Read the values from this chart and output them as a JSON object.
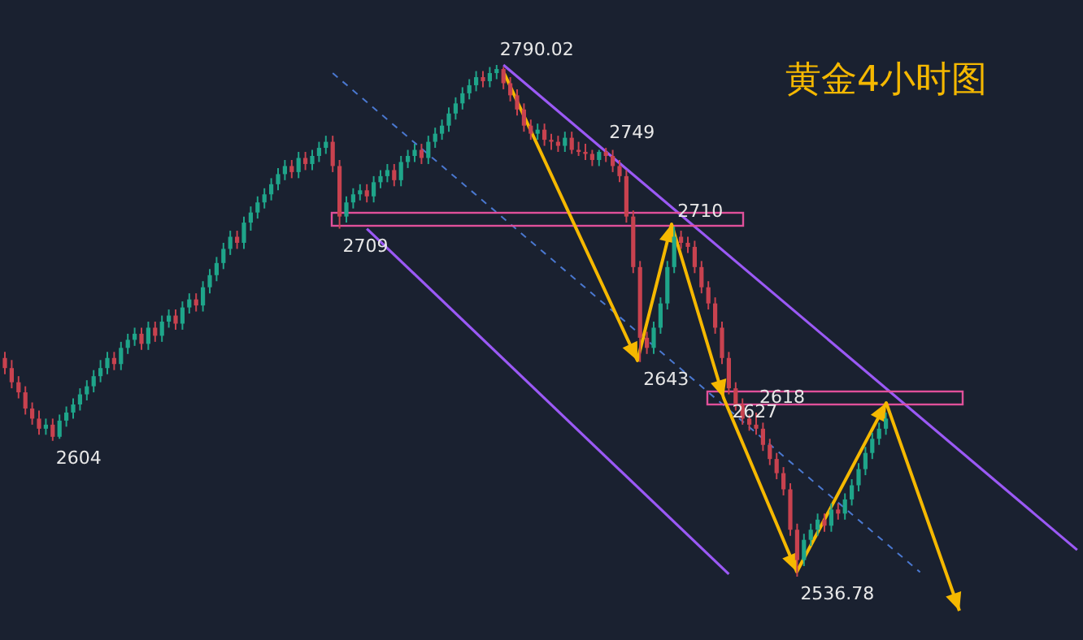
{
  "chart_data": {
    "type": "candlestick",
    "title": "黄金4小时图",
    "categories": [
      null,
      null,
      null,
      null,
      null,
      null,
      null,
      null,
      null,
      null,
      null,
      null,
      null,
      null,
      null,
      null,
      null,
      null,
      null,
      null,
      null,
      null,
      null,
      null,
      null,
      null,
      null,
      null,
      null,
      null,
      null,
      null,
      null,
      null,
      null,
      null,
      null,
      null,
      null,
      null,
      null,
      null,
      null,
      null,
      null,
      null,
      null,
      null,
      null,
      null,
      null,
      null,
      null,
      null,
      null,
      null,
      null,
      null,
      null,
      null,
      null,
      null,
      null,
      null,
      null,
      null,
      null,
      null,
      null,
      null,
      null,
      null,
      null,
      null,
      null,
      null,
      null,
      null,
      null,
      null,
      null,
      null,
      null,
      null,
      null,
      null,
      null,
      null,
      null,
      null,
      null,
      null,
      null,
      null,
      null,
      null,
      null,
      null,
      null,
      null,
      null,
      null,
      null,
      null,
      null,
      null,
      null,
      null,
      null,
      null,
      null,
      null,
      null,
      null,
      null,
      null,
      null,
      null,
      null,
      null,
      null,
      null,
      null,
      null,
      null,
      null,
      null,
      null,
      null,
      null,
      null,
      null,
      null,
      null,
      null,
      null,
      null,
      null,
      null,
      null,
      null,
      null,
      null,
      null,
      null,
      null,
      null,
      null,
      null,
      null,
      null,
      null,
      null,
      null,
      null,
      null,
      null,
      null,
      null
    ],
    "series": [
      {
        "type": "line",
        "color": "#9b59f5",
        "values": [
          null,
          null,
          null,
          null,
          null,
          null,
          null,
          null,
          null,
          null,
          null,
          null,
          null,
          null,
          null,
          null,
          null,
          null,
          null,
          null,
          null,
          null,
          null,
          null,
          null,
          null,
          null,
          null,
          null,
          null,
          null,
          null,
          null,
          null,
          null,
          null,
          null,
          null,
          null,
          null,
          null,
          null,
          null,
          null,
          null,
          null,
          null,
          null,
          null,
          null,
          null,
          null,
          null,
          null,
          null,
          null,
          null,
          null,
          null,
          null,
          null,
          null,
          null,
          null,
          null,
          null,
          null,
          null,
          null,
          null,
          null,
          null,
          null,
          2790,
          null,
          null,
          null,
          null,
          null,
          null,
          null,
          null,
          null,
          null,
          null,
          null,
          null,
          null,
          null,
          null,
          null,
          null,
          null,
          null,
          null,
          null,
          null,
          null,
          null,
          null,
          null,
          null,
          null,
          null,
          null,
          null,
          null,
          null,
          null,
          null,
          null,
          null,
          null,
          null,
          null,
          null,
          null,
          null,
          null,
          null,
          null,
          null,
          null,
          null,
          null,
          null,
          null,
          null,
          null,
          null,
          null,
          null,
          null,
          null,
          null,
          null,
          null,
          null,
          null,
          null,
          null,
          null,
          null,
          null,
          null,
          null,
          null,
          null,
          null,
          null,
          null,
          null,
          null,
          null,
          null,
          null,
          null,
          2550,
          null
        ]
      },
      {
        "type": "line",
        "color": "#9b59f5",
        "values": [
          null,
          null,
          null,
          null,
          null,
          null,
          null,
          null,
          null,
          null,
          null,
          null,
          null,
          null,
          null,
          null,
          null,
          null,
          null,
          null,
          null,
          null,
          null,
          null,
          null,
          null,
          null,
          null,
          null,
          null,
          null,
          null,
          null,
          null,
          null,
          null,
          null,
          null,
          null,
          null,
          null,
          null,
          null,
          null,
          null,
          null,
          null,
          null,
          null,
          null,
          null,
          null,
          null,
          2709,
          null,
          null,
          null,
          null,
          null,
          null,
          null,
          null,
          null,
          null,
          null,
          null,
          null,
          null,
          null,
          null,
          null,
          null,
          null,
          null,
          null,
          null,
          null,
          null,
          null,
          null,
          null,
          null,
          null,
          null,
          null,
          null,
          null,
          null,
          null,
          null,
          null,
          null,
          null,
          null,
          null,
          null,
          null,
          null,
          null,
          null,
          null,
          null,
          null,
          null,
          null,
          null,
          2538,
          null,
          null,
          null,
          null,
          null,
          null,
          null,
          null,
          null,
          null,
          null,
          null,
          null,
          null,
          null,
          null,
          null,
          null,
          null,
          null,
          null,
          null,
          null,
          null,
          null,
          null,
          null,
          null,
          null,
          null,
          null,
          null,
          null,
          null,
          null,
          null,
          null,
          null,
          null,
          null,
          null,
          null,
          null,
          null,
          null,
          null,
          null,
          null,
          null,
          null,
          null,
          null
        ]
      },
      {
        "type": "line",
        "color": "#4a78d0",
        "line_style": "dashed",
        "values": [
          null,
          null,
          null,
          null,
          null,
          null,
          null,
          null,
          null,
          null,
          null,
          null,
          null,
          null,
          null,
          null,
          null,
          null,
          null,
          null,
          null,
          null,
          null,
          null,
          null,
          null,
          null,
          null,
          null,
          null,
          null,
          null,
          null,
          null,
          null,
          null,
          null,
          null,
          null,
          null,
          null,
          null,
          null,
          null,
          null,
          null,
          null,
          null,
          2786,
          null,
          null,
          null,
          null,
          null,
          null,
          null,
          null,
          null,
          null,
          null,
          null,
          null,
          null,
          null,
          null,
          null,
          null,
          null,
          null,
          null,
          null,
          null,
          null,
          null,
          null,
          null,
          null,
          null,
          null,
          null,
          null,
          null,
          null,
          null,
          null,
          null,
          null,
          null,
          null,
          null,
          null,
          null,
          null,
          null,
          null,
          null,
          null,
          null,
          null,
          null,
          null,
          null,
          null,
          null,
          null,
          null,
          null,
          null,
          null,
          null,
          null,
          null,
          null,
          null,
          null,
          null,
          null,
          null,
          null,
          null,
          null,
          null,
          null,
          null,
          null,
          null,
          null,
          null,
          null,
          null,
          null,
          null,
          null,
          null,
          2539,
          null,
          null,
          null,
          null,
          null,
          null,
          null,
          null,
          null,
          null,
          null,
          null,
          null,
          null,
          null,
          null,
          null,
          null,
          null,
          null,
          null,
          null,
          null,
          null
        ]
      }
    ],
    "ohlc": [
      [
        2645,
        2648,
        2637,
        2640
      ],
      [
        2640,
        2644,
        2630,
        2633
      ],
      [
        2633,
        2636,
        2625,
        2628
      ],
      [
        2628,
        2631,
        2617,
        2620
      ],
      [
        2620,
        2623,
        2612,
        2615
      ],
      [
        2615,
        2619,
        2607,
        2610
      ],
      [
        2610,
        2615,
        2607,
        2612
      ],
      [
        2612,
        2615,
        2604,
        2606
      ],
      [
        2606,
        2617,
        2605,
        2614
      ],
      [
        2614,
        2621,
        2611,
        2618
      ],
      [
        2618,
        2625,
        2615,
        2622
      ],
      [
        2622,
        2630,
        2619,
        2627
      ],
      [
        2627,
        2634,
        2624,
        2631
      ],
      [
        2631,
        2639,
        2628,
        2636
      ],
      [
        2636,
        2644,
        2633,
        2640
      ],
      [
        2640,
        2648,
        2637,
        2645
      ],
      [
        2645,
        2648,
        2639,
        2642
      ],
      [
        2642,
        2653,
        2639,
        2650
      ],
      [
        2650,
        2657,
        2647,
        2654
      ],
      [
        2654,
        2660,
        2651,
        2657
      ],
      [
        2657,
        2660,
        2649,
        2652
      ],
      [
        2652,
        2663,
        2649,
        2660
      ],
      [
        2660,
        2663,
        2653,
        2656
      ],
      [
        2656,
        2666,
        2653,
        2663
      ],
      [
        2663,
        2669,
        2660,
        2666
      ],
      [
        2666,
        2669,
        2659,
        2662
      ],
      [
        2662,
        2673,
        2659,
        2670
      ],
      [
        2670,
        2677,
        2667,
        2674
      ],
      [
        2674,
        2677,
        2668,
        2671
      ],
      [
        2671,
        2683,
        2668,
        2680
      ],
      [
        2680,
        2689,
        2677,
        2686
      ],
      [
        2686,
        2695,
        2683,
        2692
      ],
      [
        2692,
        2702,
        2689,
        2699
      ],
      [
        2699,
        2708,
        2696,
        2705
      ],
      [
        2705,
        2708,
        2699,
        2702
      ],
      [
        2702,
        2715,
        2699,
        2712
      ],
      [
        2712,
        2720,
        2708,
        2717
      ],
      [
        2717,
        2725,
        2714,
        2722
      ],
      [
        2722,
        2729,
        2719,
        2726
      ],
      [
        2726,
        2734,
        2723,
        2731
      ],
      [
        2731,
        2739,
        2728,
        2736
      ],
      [
        2736,
        2743,
        2733,
        2740
      ],
      [
        2740,
        2743,
        2734,
        2737
      ],
      [
        2737,
        2747,
        2734,
        2744
      ],
      [
        2744,
        2747,
        2738,
        2741
      ],
      [
        2741,
        2748,
        2738,
        2745
      ],
      [
        2745,
        2752,
        2742,
        2749
      ],
      [
        2749,
        2755,
        2746,
        2752
      ],
      [
        2752,
        2755,
        2737,
        2740
      ],
      [
        2740,
        2743,
        2709,
        2715
      ],
      [
        2715,
        2725,
        2712,
        2722
      ],
      [
        2722,
        2729,
        2719,
        2726
      ],
      [
        2726,
        2731,
        2723,
        2728
      ],
      [
        2728,
        2731,
        2722,
        2725
      ],
      [
        2725,
        2735,
        2722,
        2732
      ],
      [
        2732,
        2738,
        2729,
        2735
      ],
      [
        2735,
        2741,
        2732,
        2738
      ],
      [
        2738,
        2741,
        2730,
        2733
      ],
      [
        2733,
        2745,
        2730,
        2742
      ],
      [
        2742,
        2748,
        2739,
        2745
      ],
      [
        2745,
        2751,
        2742,
        2748
      ],
      [
        2748,
        2751,
        2741,
        2744
      ],
      [
        2744,
        2755,
        2741,
        2752
      ],
      [
        2752,
        2759,
        2749,
        2756
      ],
      [
        2756,
        2763,
        2753,
        2760
      ],
      [
        2760,
        2769,
        2757,
        2766
      ],
      [
        2766,
        2774,
        2763,
        2771
      ],
      [
        2771,
        2779,
        2768,
        2776
      ],
      [
        2776,
        2783,
        2773,
        2780
      ],
      [
        2780,
        2787,
        2777,
        2784
      ],
      [
        2784,
        2787,
        2779,
        2782
      ],
      [
        2782,
        2789,
        2779,
        2786
      ],
      [
        2786,
        2790.02,
        2783,
        2788
      ],
      [
        2788,
        2789,
        2778,
        2781
      ],
      [
        2781,
        2784,
        2772,
        2775
      ],
      [
        2775,
        2778,
        2765,
        2768
      ],
      [
        2768,
        2771,
        2757,
        2760
      ],
      [
        2760,
        2763,
        2753,
        2756
      ],
      [
        2756,
        2761,
        2753,
        2758
      ],
      [
        2758,
        2761,
        2750,
        2753
      ],
      [
        2753,
        2756,
        2748,
        2752
      ],
      [
        2752,
        2755,
        2747,
        2750
      ],
      [
        2750,
        2757,
        2747,
        2754
      ],
      [
        2754,
        2757,
        2746,
        2748
      ],
      [
        2748,
        2752,
        2745,
        2747
      ],
      [
        2747,
        2751,
        2743,
        2746
      ],
      [
        2746,
        2748,
        2740,
        2743
      ],
      [
        2743,
        2748,
        2740,
        2747
      ],
      [
        2747,
        2749,
        2742,
        2745
      ],
      [
        2745,
        2748,
        2737,
        2740
      ],
      [
        2740,
        2743,
        2732,
        2735
      ],
      [
        2735,
        2738,
        2712,
        2715
      ],
      [
        2715,
        2718,
        2687,
        2690
      ],
      [
        2690,
        2693,
        2643,
        2655
      ],
      [
        2655,
        2658,
        2647,
        2650
      ],
      [
        2650,
        2663,
        2647,
        2660
      ],
      [
        2660,
        2675,
        2657,
        2672
      ],
      [
        2672,
        2693,
        2669,
        2690
      ],
      [
        2690,
        2710,
        2687,
        2705
      ],
      [
        2705,
        2708,
        2699,
        2702
      ],
      [
        2702,
        2705,
        2697,
        2700
      ],
      [
        2700,
        2703,
        2687,
        2690
      ],
      [
        2690,
        2693,
        2677,
        2680
      ],
      [
        2680,
        2683,
        2669,
        2672
      ],
      [
        2672,
        2675,
        2657,
        2660
      ],
      [
        2660,
        2663,
        2642,
        2645
      ],
      [
        2645,
        2648,
        2627,
        2630
      ],
      [
        2630,
        2633,
        2619,
        2622
      ],
      [
        2622,
        2625,
        2612,
        2615
      ],
      [
        2615,
        2617,
        2609,
        2612
      ],
      [
        2612,
        2618,
        2607,
        2610
      ],
      [
        2610,
        2613,
        2599,
        2602
      ],
      [
        2602,
        2605,
        2592,
        2595
      ],
      [
        2595,
        2598,
        2585,
        2588
      ],
      [
        2588,
        2591,
        2577,
        2580
      ],
      [
        2580,
        2583,
        2557,
        2560
      ],
      [
        2560,
        2563,
        2536.78,
        2545
      ],
      [
        2545,
        2558,
        2542,
        2555
      ],
      [
        2555,
        2563,
        2552,
        2560
      ],
      [
        2560,
        2568,
        2557,
        2565
      ],
      [
        2565,
        2568,
        2559,
        2562
      ],
      [
        2562,
        2573,
        2559,
        2570
      ],
      [
        2570,
        2573,
        2565,
        2568
      ],
      [
        2568,
        2578,
        2565,
        2575
      ],
      [
        2575,
        2585,
        2572,
        2582
      ],
      [
        2582,
        2593,
        2579,
        2590
      ],
      [
        2590,
        2601,
        2587,
        2598
      ],
      [
        2598,
        2608,
        2595,
        2605
      ],
      [
        2605,
        2613,
        2602,
        2610
      ],
      [
        2610,
        2618,
        2607,
        2615
      ],
      null,
      null,
      null,
      null,
      null,
      null,
      null,
      null,
      null,
      null,
      null,
      null,
      null,
      null,
      null,
      null,
      null,
      null,
      null,
      null,
      null,
      null,
      null,
      null,
      null,
      null,
      null,
      null,
      null
    ],
    "annotations": [
      "2790.02",
      "2749",
      "2709",
      "2710",
      "2643",
      "2627",
      "2618",
      "2604",
      "2536.78"
    ]
  }
}
